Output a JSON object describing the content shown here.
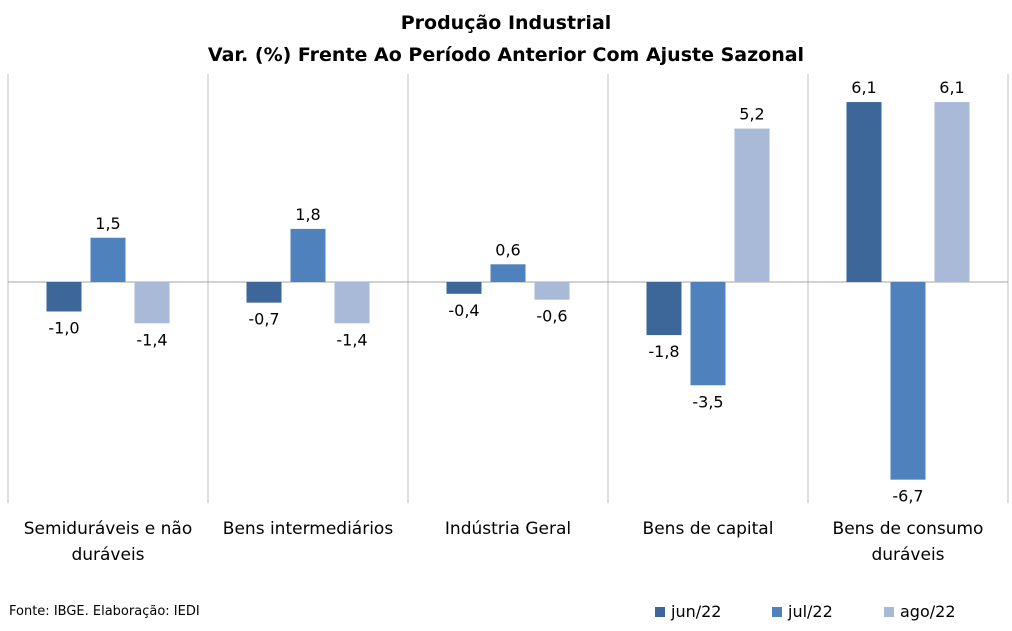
{
  "chart_data": {
    "type": "bar",
    "title": "Produção Industrial",
    "subtitle": "Var. (%) Frente Ao Período Anterior Com Ajuste Sazonal",
    "categories": [
      "Semiduráveis e não duráveis",
      "Bens intermediários",
      "Indústria Geral",
      "Bens de capital",
      "Bens de consumo duráveis"
    ],
    "category_lines": [
      [
        "Semiduráveis e não",
        "duráveis"
      ],
      [
        "Bens intermediários"
      ],
      [
        "Indústria Geral"
      ],
      [
        "Bens de capital"
      ],
      [
        "Bens de consumo",
        "duráveis"
      ]
    ],
    "series": [
      {
        "name": "jun/22",
        "values": [
          -1.0,
          -0.7,
          -0.4,
          -1.8,
          6.1
        ],
        "labels": [
          "-1,0",
          "-0,7",
          "-0,4",
          "-1,8",
          "6,1"
        ],
        "color": "#3d6699"
      },
      {
        "name": "jul/22",
        "values": [
          1.5,
          1.8,
          0.6,
          -3.5,
          -6.7
        ],
        "labels": [
          "1,5",
          "1,8",
          "0,6",
          "-3,5",
          "-6,7"
        ],
        "color": "#4f81bd"
      },
      {
        "name": "ago/22",
        "values": [
          -1.4,
          -1.4,
          -0.6,
          5.2,
          6.1
        ],
        "labels": [
          "-1,4",
          "-1,4",
          "-0,6",
          "5,2",
          "6,1"
        ],
        "color": "#a9b9d8"
      }
    ],
    "ylim": [
      -7.4,
      7.0
    ],
    "grid": false,
    "legend_position": "bottom-right",
    "xlabel": "",
    "ylabel": ""
  },
  "source": "Fonte: IBGE. Elaboração: IEDI"
}
